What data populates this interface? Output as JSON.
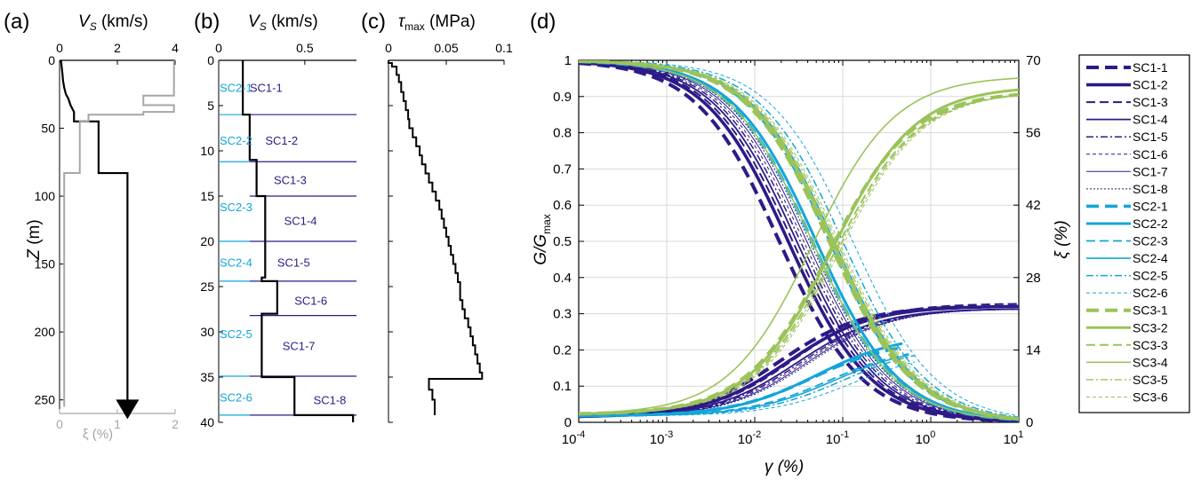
{
  "colors": {
    "black": "#000000",
    "gray": "#a6a6a6",
    "sc1": "#2e1a87",
    "sc2": "#14a5d9",
    "sc3": "#9bc35a",
    "grid": "#d9d9d9"
  },
  "chart_data": [
    {
      "panel": "a",
      "panel_label": "(a)",
      "type": "line",
      "title": "",
      "top_axis_label": "V_S (km/s)",
      "top_axis_label_main": "V",
      "top_axis_label_sub": "S",
      "top_axis_label_rest": " (km/s)",
      "bottom_axis_label": "ξ (%)",
      "ylabel": "Z (m)",
      "ylabel_main": "Z",
      "ylabel_rest": " (m)",
      "top_xlim": [
        0,
        4
      ],
      "top_xticks": [
        "0",
        "2",
        "4"
      ],
      "bottom_xlim": [
        0,
        2
      ],
      "bottom_xticks": [
        "0",
        "1",
        "2"
      ],
      "ylim": [
        0,
        260
      ],
      "yticks": [
        "0",
        "50",
        "100",
        "150",
        "200",
        "250"
      ],
      "series": [
        {
          "axis": "top",
          "color": "black",
          "points": [
            [
              0.05,
              0
            ],
            [
              0.1,
              10
            ],
            [
              0.12,
              15
            ],
            [
              0.16,
              20
            ],
            [
              0.22,
              25
            ],
            [
              0.3,
              28
            ],
            [
              0.38,
              33
            ],
            [
              0.45,
              36
            ],
            [
              0.5,
              38
            ],
            [
              0.5,
              45
            ],
            [
              1.35,
              45
            ],
            [
              1.35,
              83
            ],
            [
              2.35,
              83
            ],
            [
              2.35,
              255
            ]
          ]
        },
        {
          "axis": "bottom",
          "color": "gray",
          "points": [
            [
              1.98,
              0
            ],
            [
              1.98,
              26
            ],
            [
              1.45,
              26
            ],
            [
              1.45,
              33
            ],
            [
              1.98,
              33
            ],
            [
              1.98,
              38
            ],
            [
              1.45,
              38
            ],
            [
              1.45,
              40
            ],
            [
              0.5,
              40
            ],
            [
              0.5,
              45
            ],
            [
              0.35,
              45
            ],
            [
              0.35,
              83
            ],
            [
              0.08,
              83
            ],
            [
              0.08,
              255
            ]
          ]
        }
      ],
      "arrow_at": [
        2.35,
        255
      ]
    },
    {
      "panel": "b",
      "panel_label": "(b)",
      "type": "line",
      "title": "",
      "top_axis_label": "V_S (km/s)",
      "top_axis_label_main": "V",
      "top_axis_label_sub": "S",
      "top_axis_label_rest": " (km/s)",
      "xlim": [
        0,
        0.8
      ],
      "xticks": [
        {
          "v": 0,
          "label": "0"
        },
        {
          "v": 0.5,
          "label": "0.5"
        }
      ],
      "ylim": [
        0,
        40
      ],
      "yticks": [
        "0",
        "5",
        "10",
        "15",
        "20",
        "25",
        "30",
        "35",
        "40"
      ],
      "profile": [
        [
          0.14,
          0
        ],
        [
          0.14,
          6
        ],
        [
          0.18,
          6
        ],
        [
          0.18,
          11
        ],
        [
          0.22,
          11
        ],
        [
          0.22,
          15
        ],
        [
          0.27,
          15
        ],
        [
          0.27,
          20
        ],
        [
          0.27,
          24
        ],
        [
          0.25,
          24
        ],
        [
          0.25,
          24.4
        ],
        [
          0.34,
          24.4
        ],
        [
          0.34,
          28
        ],
        [
          0.25,
          28
        ],
        [
          0.25,
          35
        ],
        [
          0.44,
          35
        ],
        [
          0.44,
          39.2
        ],
        [
          0.78,
          39.2
        ],
        [
          0.78,
          40
        ]
      ],
      "sc1_boundaries": [
        6,
        11.2,
        15,
        20,
        24.4,
        28.2,
        34.9,
        39.2
      ],
      "sc2_boundaries": [
        6,
        11.2,
        20,
        24.4,
        34.9,
        39.2
      ],
      "sc1_labels": [
        {
          "text": "SC1-1",
          "x": 0.18,
          "z": 3
        },
        {
          "text": "SC1-2",
          "x": 0.27,
          "z": 8.8
        },
        {
          "text": "SC1-3",
          "x": 0.32,
          "z": 13.2
        },
        {
          "text": "SC1-4",
          "x": 0.38,
          "z": 17.7
        },
        {
          "text": "SC1-5",
          "x": 0.34,
          "z": 22.3
        },
        {
          "text": "SC1-6",
          "x": 0.44,
          "z": 26.5
        },
        {
          "text": "SC1-7",
          "x": 0.37,
          "z": 31.5
        },
        {
          "text": "SC1-8",
          "x": 0.55,
          "z": 37.5
        }
      ],
      "sc2_labels": [
        {
          "text": "SC2-1",
          "x": 0.005,
          "z": 3
        },
        {
          "text": "SC2-2",
          "x": 0.005,
          "z": 8.8
        },
        {
          "text": "SC2-3",
          "x": 0.005,
          "z": 16.2
        },
        {
          "text": "SC2-4",
          "x": 0.005,
          "z": 22.3
        },
        {
          "text": "SC2-5",
          "x": 0.005,
          "z": 30.2
        },
        {
          "text": "SC2-6",
          "x": 0.005,
          "z": 37.2
        }
      ]
    },
    {
      "panel": "c",
      "panel_label": "(c)",
      "type": "line",
      "title": "",
      "top_axis_label": "τ_max (MPa)",
      "top_axis_label_main": "τ",
      "top_axis_label_sub": "max",
      "top_axis_label_rest": " (MPa)",
      "xlim": [
        0,
        0.1
      ],
      "xticks": [
        "0",
        "0.05",
        "0.1"
      ],
      "ylim": [
        0,
        40
      ],
      "profile": [
        [
          0,
          0
        ],
        [
          0.003,
          0.3
        ],
        [
          0.007,
          0.7
        ],
        [
          0.009,
          1.6
        ],
        [
          0.011,
          2.4
        ],
        [
          0.013,
          3.5
        ],
        [
          0.015,
          4.5
        ],
        [
          0.017,
          5.5
        ],
        [
          0.018,
          6.5
        ],
        [
          0.021,
          7.5
        ],
        [
          0.024,
          8.5
        ],
        [
          0.027,
          9.5
        ],
        [
          0.029,
          10.5
        ],
        [
          0.032,
          11.5
        ],
        [
          0.035,
          12.5
        ],
        [
          0.038,
          13.5
        ],
        [
          0.041,
          14.5
        ],
        [
          0.044,
          15.5
        ],
        [
          0.046,
          16.5
        ],
        [
          0.048,
          17.5
        ],
        [
          0.05,
          18.5
        ],
        [
          0.052,
          19.5
        ],
        [
          0.054,
          20.5
        ],
        [
          0.056,
          21.5
        ],
        [
          0.058,
          22.5
        ],
        [
          0.06,
          23.5
        ],
        [
          0.062,
          24.5
        ],
        [
          0.062,
          25.5
        ],
        [
          0.064,
          26.5
        ],
        [
          0.066,
          27.5
        ],
        [
          0.069,
          28.5
        ],
        [
          0.071,
          29.5
        ],
        [
          0.073,
          30.5
        ],
        [
          0.075,
          31.5
        ],
        [
          0.077,
          32.5
        ],
        [
          0.079,
          33.5
        ],
        [
          0.081,
          34.5
        ],
        [
          0.081,
          35.2
        ],
        [
          0.035,
          35.2
        ],
        [
          0.035,
          36.4
        ],
        [
          0.038,
          36.4
        ],
        [
          0.04,
          37.5
        ],
        [
          0.04,
          39.2
        ]
      ]
    },
    {
      "panel": "d",
      "panel_label": "(d)",
      "type": "line",
      "title": "",
      "xlabel": "γ (%)",
      "ylabel": "G/G_max",
      "ylabel_main": "G/G",
      "ylabel_sub": "max",
      "y2label": "ξ (%)",
      "xscale": "log",
      "xlim": [
        0.0001,
        10
      ],
      "x_tick_mantissa": "10",
      "xtick_exponents": [
        "-4",
        "-3",
        "-2",
        "-1",
        "0",
        "1"
      ],
      "ylim": [
        0,
        1
      ],
      "yticks": [
        "0",
        "0.1",
        "0.2",
        "0.3",
        "0.4",
        "0.5",
        "0.6",
        "0.7",
        "0.8",
        "0.9",
        "1"
      ],
      "y2lim": [
        0,
        70
      ],
      "y2ticks": [
        "0",
        "14",
        "28",
        "42",
        "56",
        "70"
      ],
      "grid": true,
      "legend_position": "right",
      "series": [
        {
          "name": "SC1-1",
          "color": "sc1",
          "width": 4,
          "dash": "14,7",
          "g_ref": 0.019,
          "a": 0.92,
          "xi_max": 22.5,
          "xi_min": 1,
          "g_end": 2.3
        },
        {
          "name": "SC1-2",
          "color": "sc1",
          "width": 3.6,
          "dash": "",
          "g_ref": 0.024,
          "a": 0.92,
          "xi_max": 22.5,
          "xi_min": 1,
          "g_end": 10
        },
        {
          "name": "SC1-3",
          "color": "sc1",
          "width": 2,
          "dash": "10,5",
          "g_ref": 0.027,
          "a": 0.92,
          "xi_max": 23,
          "xi_min": 1,
          "g_end": 10
        },
        {
          "name": "SC1-4",
          "color": "sc1",
          "width": 1.8,
          "dash": "",
          "g_ref": 0.03,
          "a": 0.92,
          "xi_max": 22,
          "xi_min": 1,
          "g_end": 10
        },
        {
          "name": "SC1-5",
          "color": "sc1",
          "width": 1.5,
          "dash": "8,3,2,3",
          "g_ref": 0.033,
          "a": 0.92,
          "xi_max": 22,
          "xi_min": 1,
          "g_end": 10
        },
        {
          "name": "SC1-6",
          "color": "sc1",
          "width": 1,
          "dash": "4,3",
          "g_ref": 0.036,
          "a": 0.92,
          "xi_max": 22,
          "xi_min": 1,
          "g_end": 10
        },
        {
          "name": "SC1-7",
          "color": "sc1",
          "width": 1,
          "dash": "",
          "g_ref": 0.039,
          "a": 0.92,
          "xi_max": 22,
          "xi_min": 1,
          "g_end": 10
        },
        {
          "name": "SC1-8",
          "color": "sc1",
          "width": 1,
          "dash": "2,2",
          "g_ref": 0.042,
          "a": 0.92,
          "xi_max": 22,
          "xi_min": 1,
          "g_end": 10
        },
        {
          "name": "SC2-1",
          "color": "sc2",
          "width": 3.6,
          "dash": "14,7",
          "g_ref": 0.045,
          "a": 0.92,
          "xi_max": 16,
          "xi_min": 1.2,
          "g_end": 0.5
        },
        {
          "name": "SC2-2",
          "color": "sc2",
          "width": 3,
          "dash": "",
          "g_ref": 0.05,
          "a": 0.92,
          "xi_max": 17,
          "xi_min": 1.2,
          "g_end": 0.5
        },
        {
          "name": "SC2-3",
          "color": "sc2",
          "width": 1.8,
          "dash": "10,5",
          "g_ref": 0.07,
          "a": 0.92,
          "xi_max": 15,
          "xi_min": 1.2,
          "g_end": 0.6
        },
        {
          "name": "SC2-4",
          "color": "sc2",
          "width": 1.6,
          "dash": "",
          "g_ref": 0.08,
          "a": 0.92,
          "xi_max": 15,
          "xi_min": 1.2,
          "g_end": 0.6
        },
        {
          "name": "SC2-5",
          "color": "sc2",
          "width": 1.5,
          "dash": "8,3,2,3",
          "g_ref": 0.1,
          "a": 0.92,
          "xi_max": 15,
          "xi_min": 1.2,
          "g_end": 0.7
        },
        {
          "name": "SC2-6",
          "color": "sc2",
          "width": 1,
          "dash": "4,3",
          "g_ref": 0.13,
          "a": 0.92,
          "xi_max": 14,
          "xi_min": 1.2,
          "g_end": 0.7
        },
        {
          "name": "SC3-1",
          "color": "sc3",
          "width": 4,
          "dash": "14,7",
          "g_ref": 0.07,
          "a": 0.92,
          "xi_max": 64,
          "xi_min": 1.5,
          "g_end": 10
        },
        {
          "name": "SC3-2",
          "color": "sc3",
          "width": 3,
          "dash": "",
          "g_ref": 0.075,
          "a": 0.92,
          "xi_max": 65,
          "xi_min": 1.5,
          "g_end": 10
        },
        {
          "name": "SC3-3",
          "color": "sc3",
          "width": 2,
          "dash": "10,5",
          "g_ref": 0.08,
          "a": 0.92,
          "xi_max": 64,
          "xi_min": 1.5,
          "g_end": 10
        },
        {
          "name": "SC3-4",
          "color": "sc3",
          "width": 1.6,
          "dash": "",
          "g_ref": 0.045,
          "a": 0.92,
          "xi_max": 67,
          "xi_min": 1.5,
          "g_end": 10
        },
        {
          "name": "SC3-5",
          "color": "sc3",
          "width": 1.4,
          "dash": "8,3,2,3",
          "g_ref": 0.085,
          "a": 0.92,
          "xi_max": 64,
          "xi_min": 1.5,
          "g_end": 10
        },
        {
          "name": "SC3-6",
          "color": "sc3",
          "width": 1,
          "dash": "4,3",
          "g_ref": 0.09,
          "a": 0.92,
          "xi_max": 64,
          "xi_min": 1.5,
          "g_end": 10
        }
      ]
    }
  ]
}
